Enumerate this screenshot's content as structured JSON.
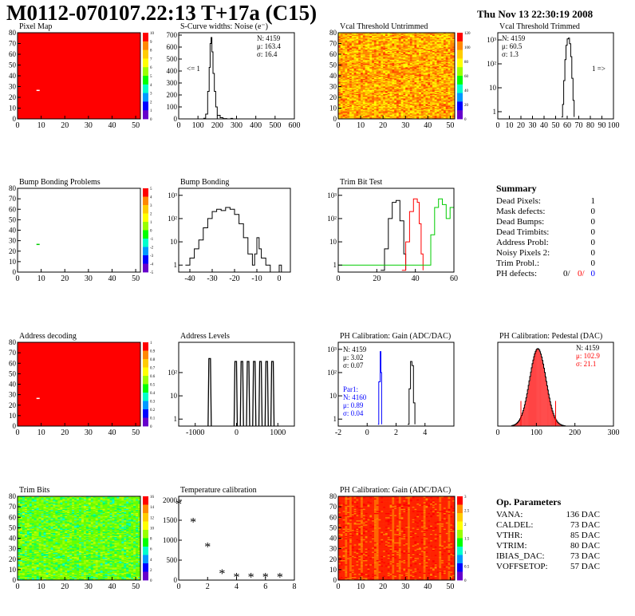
{
  "header": {
    "title": "M0112-070107.22:13 T+17a (C15)",
    "date": "Thu Nov 13 22:30:19 2008"
  },
  "colors": {
    "red": "#ff0000",
    "green": "#00cc00",
    "blue": "#0000ff",
    "black": "#000000",
    "palette": [
      "#6600cc",
      "#0000ff",
      "#0099ff",
      "#00ffcc",
      "#00ff00",
      "#99ff00",
      "#ffff00",
      "#ffcc00",
      "#ff8800",
      "#ff0000"
    ]
  },
  "chart_data": [
    {
      "id": "pixel-map",
      "type": "heatmap",
      "title": "Pixel Map",
      "xlim": [
        0,
        52
      ],
      "ylim": [
        0,
        80
      ],
      "xticks": [
        "0",
        "10",
        "20",
        "30",
        "40",
        "50"
      ],
      "yticks": [
        "0",
        "10",
        "20",
        "30",
        "40",
        "50",
        "60",
        "70",
        "80"
      ],
      "zticks": [
        "0",
        "1",
        "2",
        "3",
        "4",
        "5",
        "6",
        "7",
        "8",
        "9",
        "10"
      ],
      "fill": "red",
      "marks": [
        {
          "x": 8,
          "y": 27
        }
      ]
    },
    {
      "id": "scurve",
      "type": "histogram",
      "title": "S-Curve widths: Noise (e⁻)",
      "xlim": [
        0,
        600
      ],
      "ylim": [
        0,
        720
      ],
      "xticks": [
        "0",
        "100",
        "200",
        "300",
        "400",
        "500",
        "600"
      ],
      "yticks": [
        "0",
        "100",
        "200",
        "300",
        "400",
        "500",
        "600",
        "700"
      ],
      "stats": [
        "N: 4159",
        "μ: 163.4",
        "σ: 16.4"
      ],
      "annotation": "<= 1",
      "points": [
        [
          120,
          0
        ],
        [
          130,
          5
        ],
        [
          140,
          40
        ],
        [
          150,
          230
        ],
        [
          158,
          430
        ],
        [
          163,
          630
        ],
        [
          168,
          680
        ],
        [
          172,
          560
        ],
        [
          178,
          380
        ],
        [
          185,
          230
        ],
        [
          192,
          100
        ],
        [
          200,
          30
        ],
        [
          215,
          10
        ],
        [
          230,
          3
        ],
        [
          250,
          0
        ],
        [
          270,
          4
        ],
        [
          280,
          0
        ]
      ]
    },
    {
      "id": "vcal-untrimmed",
      "type": "heatmap",
      "title": "Vcal Threshold Untrimmed",
      "xlim": [
        0,
        52
      ],
      "ylim": [
        0,
        80
      ],
      "xticks": [
        "0",
        "10",
        "20",
        "30",
        "40",
        "50"
      ],
      "yticks": [
        "0",
        "10",
        "20",
        "30",
        "40",
        "50",
        "60",
        "70",
        "80"
      ],
      "zticks": [
        "0",
        "20",
        "40",
        "60",
        "80",
        "100",
        "120"
      ],
      "fill": "noisy-orange"
    },
    {
      "id": "vcal-trimmed",
      "type": "histogram",
      "title": "Vcal Threshold Trimmed",
      "log": true,
      "xlim": [
        0,
        100
      ],
      "ylim": [
        0.5,
        2000
      ],
      "xticks": [
        "0",
        "10",
        "20",
        "30",
        "40",
        "50",
        "60",
        "70",
        "80",
        "90",
        "100"
      ],
      "yticks": [
        "1",
        "10",
        "10²",
        "10³"
      ],
      "stats": [
        "N: 4159",
        "μ: 60.5",
        "σ:  1.3"
      ],
      "annotation": "1 =>",
      "points": [
        [
          55,
          0.6
        ],
        [
          56,
          2
        ],
        [
          57,
          20
        ],
        [
          58,
          150
        ],
        [
          59,
          600
        ],
        [
          60,
          1100
        ],
        [
          61,
          1200
        ],
        [
          62,
          700
        ],
        [
          63,
          200
        ],
        [
          64,
          25
        ],
        [
          65,
          3
        ],
        [
          66,
          0.6
        ]
      ]
    },
    {
      "id": "bump-problems",
      "type": "heatmap",
      "title": "Bump Bonding Problems",
      "xlim": [
        0,
        52
      ],
      "ylim": [
        0,
        80
      ],
      "xticks": [
        "0",
        "10",
        "20",
        "30",
        "40",
        "50"
      ],
      "yticks": [
        "0",
        "10",
        "20",
        "30",
        "40",
        "50",
        "60",
        "70",
        "80"
      ],
      "zticks": [
        "-5",
        "-4",
        "-3",
        "-2",
        "-1",
        "0",
        "1",
        "2",
        "3",
        "4",
        "5"
      ],
      "fill": "white",
      "marks": [
        {
          "x": 8,
          "y": 27
        }
      ]
    },
    {
      "id": "bump-bonding",
      "type": "histogram",
      "title": "Bump Bonding",
      "log": true,
      "xlim": [
        -45,
        5
      ],
      "ylim": [
        0.5,
        2000
      ],
      "xticks": [
        "-40",
        "-30",
        "-20",
        "-10",
        "0"
      ],
      "yticks": [
        "1",
        "10",
        "10²",
        "10³"
      ],
      "points": [
        [
          -42,
          1
        ],
        [
          -40,
          2
        ],
        [
          -38,
          5
        ],
        [
          -36,
          12
        ],
        [
          -34,
          40
        ],
        [
          -32,
          100
        ],
        [
          -30,
          200
        ],
        [
          -28,
          250
        ],
        [
          -26,
          220
        ],
        [
          -24,
          300
        ],
        [
          -22,
          250
        ],
        [
          -20,
          150
        ],
        [
          -18,
          60
        ],
        [
          -16,
          15
        ],
        [
          -14,
          3
        ],
        [
          -12,
          1
        ],
        [
          -11,
          3
        ],
        [
          -10,
          15
        ],
        [
          -9,
          5
        ],
        [
          -8,
          2
        ],
        [
          -6,
          1
        ],
        [
          -4,
          0.5
        ],
        [
          0,
          1
        ],
        [
          1,
          0.5
        ]
      ]
    },
    {
      "id": "trim-bit-test",
      "type": "line",
      "title": "Trim Bit Test",
      "log": true,
      "xlim": [
        0,
        60
      ],
      "ylim": [
        0.5,
        2000
      ],
      "xticks": [
        "0",
        "20",
        "40",
        "60"
      ],
      "yticks": [
        "1",
        "10",
        "10²",
        "10³"
      ],
      "series": [
        {
          "color": "black",
          "points": [
            [
              22,
              0.6
            ],
            [
              24,
              5
            ],
            [
              26,
              100
            ],
            [
              28,
              500
            ],
            [
              30,
              600
            ],
            [
              32,
              80
            ],
            [
              34,
              3
            ],
            [
              35,
              0.6
            ]
          ]
        },
        {
          "color": "red",
          "points": [
            [
              33,
              0.6
            ],
            [
              35,
              10
            ],
            [
              37,
              200
            ],
            [
              39,
              700
            ],
            [
              41,
              500
            ],
            [
              42,
              60
            ],
            [
              43,
              3
            ],
            [
              44,
              0.6
            ]
          ]
        },
        {
          "color": "green",
          "points": [
            [
              0,
              1
            ],
            [
              46,
              1
            ],
            [
              48,
              20
            ],
            [
              50,
              300
            ],
            [
              52,
              700
            ],
            [
              54,
              400
            ],
            [
              56,
              100
            ],
            [
              58,
              300
            ],
            [
              60,
              100
            ]
          ]
        }
      ]
    },
    {
      "id": "address-decoding",
      "type": "heatmap",
      "title": "Address decoding",
      "xlim": [
        0,
        52
      ],
      "ylim": [
        0,
        80
      ],
      "xticks": [
        "0",
        "10",
        "20",
        "30",
        "40",
        "50"
      ],
      "yticks": [
        "0",
        "10",
        "20",
        "30",
        "40",
        "50",
        "60",
        "70",
        "80"
      ],
      "zticks": [
        "0",
        "0.1",
        "0.2",
        "0.3",
        "0.4",
        "0.5",
        "0.6",
        "0.7",
        "0.8",
        "0.9",
        "1"
      ],
      "fill": "red",
      "marks": [
        {
          "x": 8,
          "y": 27
        }
      ]
    },
    {
      "id": "address-levels",
      "type": "histogram",
      "title": "Address Levels",
      "log": true,
      "xlim": [
        -1400,
        1400
      ],
      "ylim": [
        0.5,
        2000
      ],
      "xticks": [
        "-1000",
        "0",
        "1000"
      ],
      "yticks": [
        "1",
        "10",
        "10²"
      ],
      "peaks": [
        {
          "x": -650,
          "h": 400
        },
        {
          "x": -20,
          "h": 300
        },
        {
          "x": 130,
          "h": 300
        },
        {
          "x": 280,
          "h": 300
        },
        {
          "x": 430,
          "h": 300
        },
        {
          "x": 580,
          "h": 300
        },
        {
          "x": 730,
          "h": 300
        },
        {
          "x": 870,
          "h": 300
        }
      ]
    },
    {
      "id": "ph-gain",
      "type": "histogram",
      "title": "PH Calibration: Gain (ADC/DAC)",
      "log": true,
      "xlim": [
        -2,
        6
      ],
      "ylim": [
        0.5,
        2000
      ],
      "xticks": [
        "-2",
        "0",
        "2",
        "4"
      ],
      "yticks": [
        "1",
        "10",
        "10²",
        "10³"
      ],
      "stats": [
        "N: 4159",
        "μ: 3.02",
        "σ: 0.07"
      ],
      "stats2": [
        "Par1:",
        "N: 4160",
        "μ: 0.89",
        "σ: 0.04"
      ],
      "series": [
        {
          "color": "black",
          "points": [
            [
              2.8,
              0.6
            ],
            [
              2.9,
              20
            ],
            [
              3.0,
              300
            ],
            [
              3.1,
              200
            ],
            [
              3.2,
              5
            ],
            [
              3.3,
              0.6
            ]
          ]
        },
        {
          "color": "blue",
          "points": [
            [
              0.75,
              0.6
            ],
            [
              0.8,
              40
            ],
            [
              0.9,
              800
            ],
            [
              0.95,
              100
            ],
            [
              1.0,
              0.6
            ]
          ]
        }
      ]
    },
    {
      "id": "ph-pedestal",
      "type": "histogram",
      "title": "PH Calibration: Pedestal (DAC)",
      "xlim": [
        0,
        300
      ],
      "ylim": [
        0,
        200
      ],
      "xticks": [
        "0",
        "100",
        "200",
        "300"
      ],
      "yticks": [],
      "stats": [
        "N: 4159",
        "μ: 102.9",
        "σ: 21.1"
      ],
      "bell": {
        "mean": 102.9,
        "sigma": 21.1,
        "peak": 185,
        "min": 35,
        "max": 175
      },
      "markers": [
        60,
        150
      ]
    },
    {
      "id": "trim-bits",
      "type": "heatmap",
      "title": "Trim Bits",
      "xlim": [
        0,
        52
      ],
      "ylim": [
        0,
        80
      ],
      "xticks": [
        "0",
        "10",
        "20",
        "30",
        "40",
        "50"
      ],
      "yticks": [
        "0",
        "10",
        "20",
        "30",
        "40",
        "50",
        "60",
        "70",
        "80"
      ],
      "zticks": [
        "0",
        "2",
        "4",
        "6",
        "8",
        "10",
        "12",
        "14",
        "16"
      ],
      "fill": "noisy-green"
    },
    {
      "id": "temperature",
      "type": "scatter",
      "title": "Temperature calibration",
      "xlim": [
        0,
        8
      ],
      "ylim": [
        0,
        2100
      ],
      "xticks": [
        "0",
        "2",
        "4",
        "6",
        "8"
      ],
      "yticks": [
        "0",
        "500",
        "1000",
        "1500",
        "2000"
      ],
      "points": [
        [
          0,
          1900
        ],
        [
          1,
          1450
        ],
        [
          2,
          830
        ],
        [
          3,
          160
        ],
        [
          4,
          70
        ],
        [
          5,
          70
        ],
        [
          6,
          70
        ],
        [
          7,
          70
        ]
      ]
    },
    {
      "id": "ph-gain-map",
      "type": "heatmap",
      "title": "PH Calibration: Gain (ADC/DAC)",
      "xlim": [
        0,
        52
      ],
      "ylim": [
        0,
        80
      ],
      "xticks": [
        "0",
        "10",
        "20",
        "30",
        "40",
        "50"
      ],
      "yticks": [
        "0",
        "10",
        "20",
        "30",
        "40",
        "50",
        "60",
        "70",
        "80"
      ],
      "zticks": [
        "0",
        "0.5",
        "1",
        "1.5",
        "2",
        "2.5",
        "3"
      ],
      "fill": "noisy-red"
    }
  ],
  "summary": {
    "title": "Summary",
    "rows": [
      {
        "label": "Dead Pixels:",
        "value": "1"
      },
      {
        "label": "Mask defects:",
        "value": "0"
      },
      {
        "label": "Dead Bumps:",
        "value": "0"
      },
      {
        "label": "Dead Trimbits:",
        "value": "0"
      },
      {
        "label": "Address Probl:",
        "value": "0"
      },
      {
        "label": "Noisy Pixels 2:",
        "value": "0"
      },
      {
        "label": "Trim Probl.:",
        "value": "0"
      }
    ],
    "ph": {
      "label": "PH defects:",
      "v1": "0/",
      "v2": "0/",
      "v3": "0"
    }
  },
  "parameters": {
    "title": "Op. Parameters",
    "rows": [
      {
        "label": "VANA:",
        "value": "136 DAC"
      },
      {
        "label": "CALDEL:",
        "value": "73 DAC"
      },
      {
        "label": "VTHR:",
        "value": "85 DAC"
      },
      {
        "label": "VTRIM:",
        "value": "80 DAC"
      },
      {
        "label": "IBIAS_DAC:",
        "value": "73 DAC"
      },
      {
        "label": "VOFFSETOP:",
        "value": "57 DAC"
      }
    ]
  }
}
